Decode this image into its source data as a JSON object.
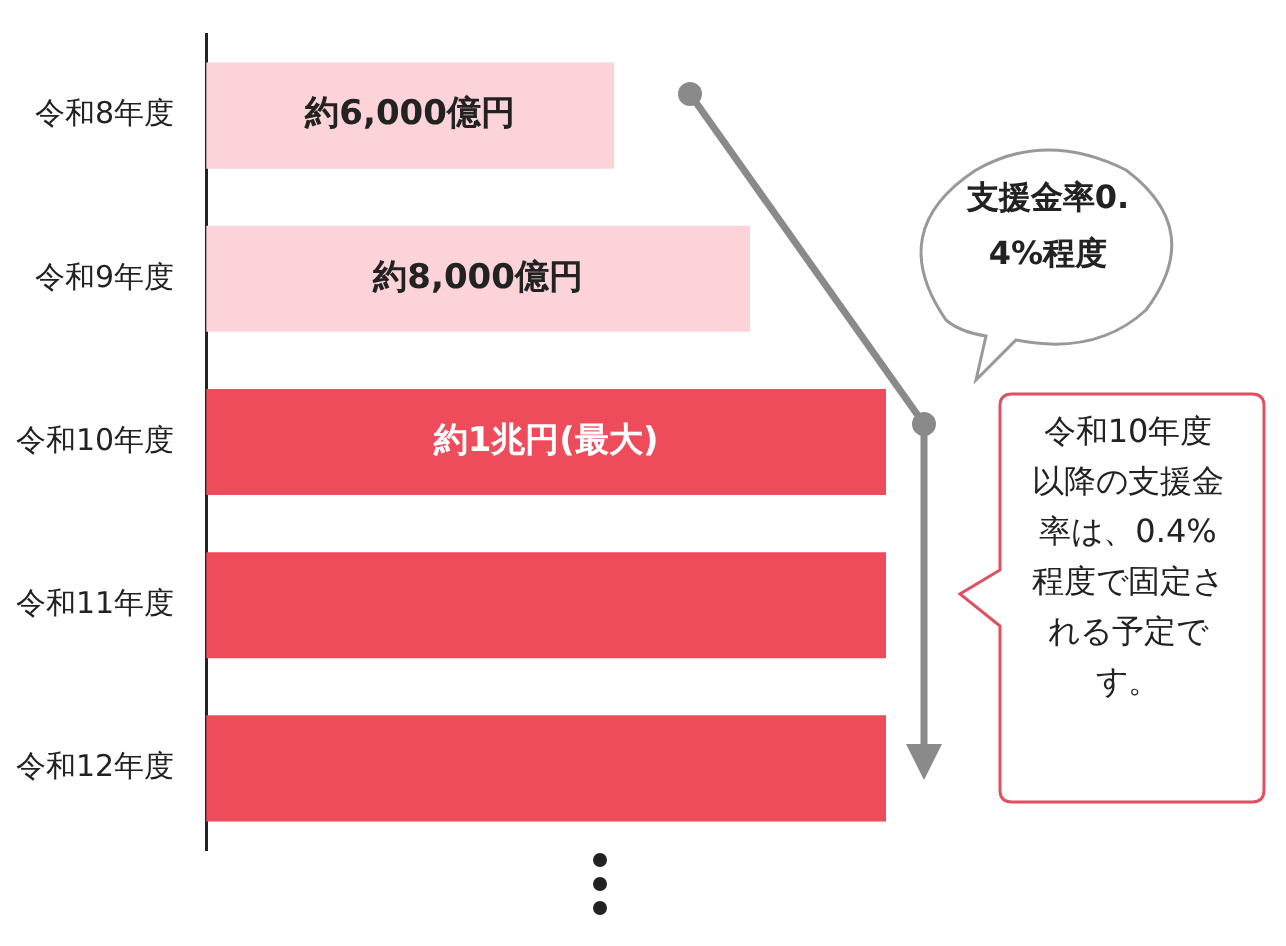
{
  "chart_data": {
    "type": "bar",
    "orientation": "horizontal",
    "tick_labels": "y",
    "categories": [
      "令和8年度",
      "令和9年度",
      "令和10年度",
      "令和11年度",
      "令和12年度"
    ],
    "values": [
      6000,
      8000,
      10000,
      10000,
      10000
    ],
    "colors": [
      "#fcd3d9",
      "#fcd3d9",
      "#ee4b5b",
      "#ee4b5b",
      "#ee4b5b"
    ],
    "value_labels": [
      "約6,000億円",
      "約8,000億円",
      "約1兆円(最大)",
      null,
      null
    ],
    "annotations": [
      "支援金率0.4%程度",
      "令和10年度以降の支援金率は、0.4%程度で固定される予定です。"
    ]
  }
}
